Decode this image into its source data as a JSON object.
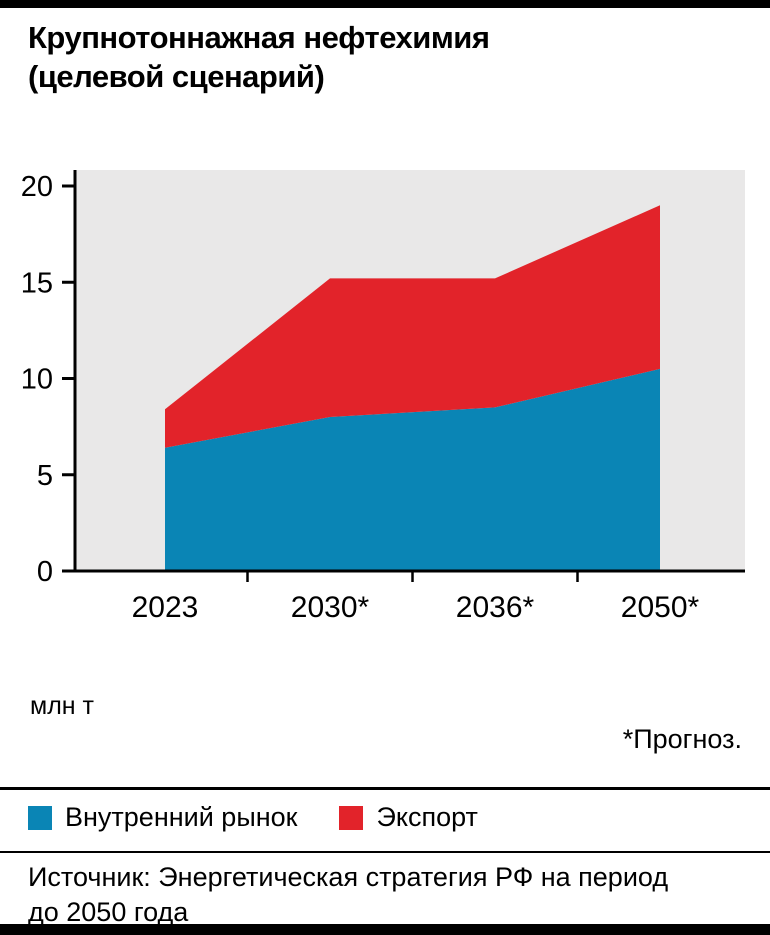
{
  "title": "Крупнотоннажная нефтехимия\n(целевой сценарий)",
  "unit_label": "млн т",
  "footnote": "*Прогноз.",
  "source": "Источник: Энергетическая стратегия РФ на период\nдо 2050 года",
  "colors": {
    "domestic": "#0a85b5",
    "export": "#e2232a",
    "plot_background": "#e9e8e8",
    "axis": "#000000"
  },
  "chart_data": {
    "type": "area",
    "stacked": true,
    "title": "Крупнотоннажная нефтехимия (целевой сценарий)",
    "categories": [
      "2023",
      "2030*",
      "2036*",
      "2050*"
    ],
    "series": [
      {
        "name": "Внутренний рынок",
        "color": "#0a85b5",
        "values": [
          6.4,
          8.0,
          8.5,
          10.5
        ]
      },
      {
        "name": "Экспорт",
        "color": "#e2232a",
        "values": [
          2.0,
          7.2,
          6.7,
          8.5
        ]
      }
    ],
    "stacked_totals": [
      8.4,
      15.2,
      15.2,
      19.0
    ],
    "ylabel": "млн т",
    "xlabel": "",
    "ylim": [
      0,
      20.8
    ],
    "yticks": [
      0,
      5,
      10,
      15,
      20
    ],
    "grid": false,
    "legend_position": "bottom",
    "plot_bg": "#e9e8e8",
    "footnote": "*Прогноз."
  }
}
